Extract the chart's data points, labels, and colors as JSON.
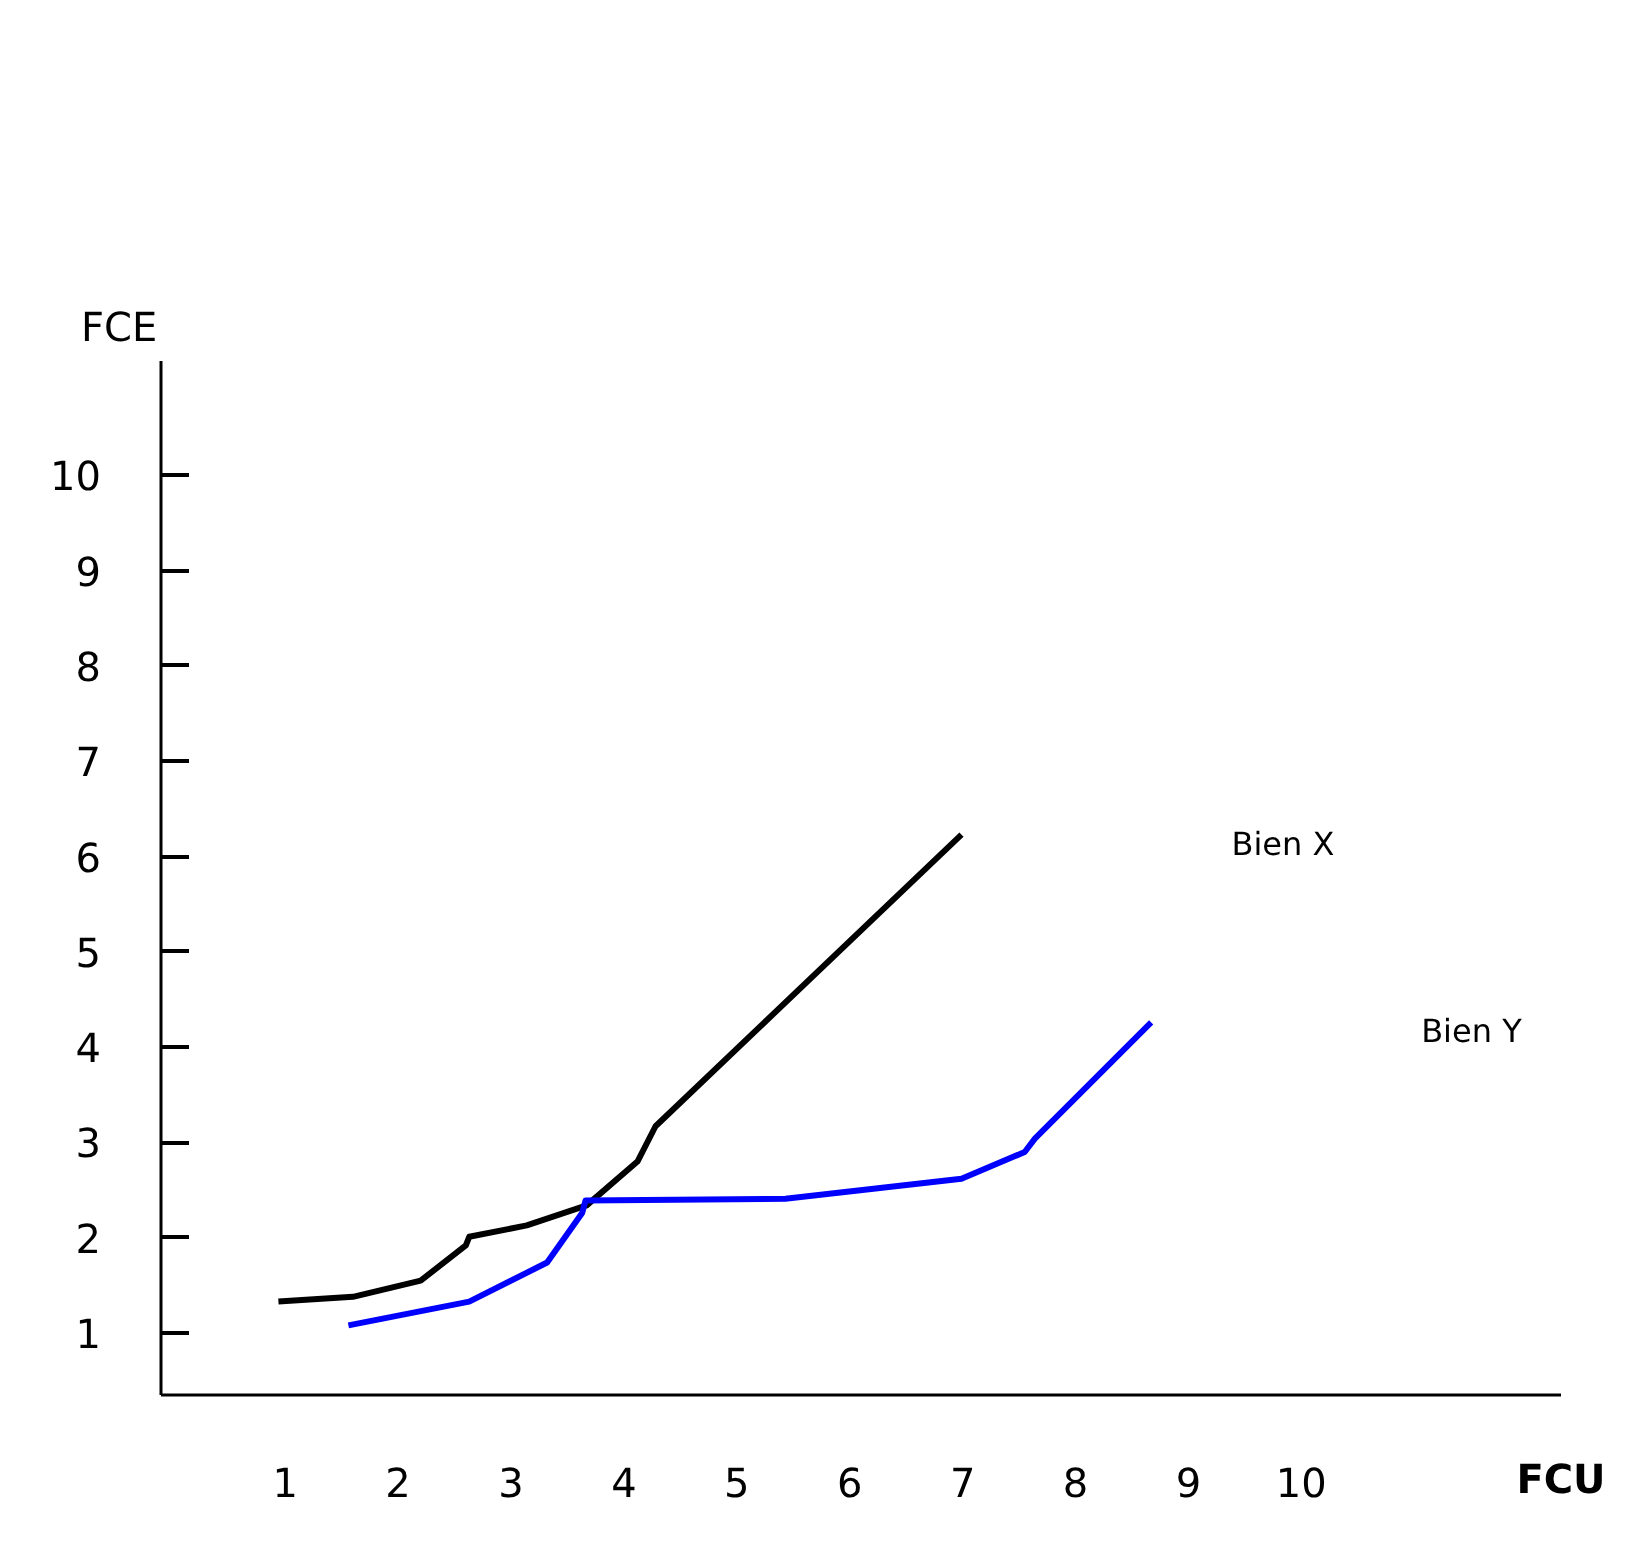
{
  "chart_data": {
    "type": "line",
    "xlabel": "FCU",
    "ylabel": "FCE",
    "xlim": [
      -0.1,
      12.3
    ],
    "ylim": [
      0.35,
      11.2
    ],
    "xticks": [
      1,
      2,
      3,
      4,
      5,
      6,
      7,
      8,
      9,
      10
    ],
    "yticks": [
      1,
      2,
      3,
      4,
      5,
      6,
      7,
      8,
      9,
      10
    ],
    "grid": false,
    "legend": false,
    "marker": "none",
    "line_style": "solid",
    "series": [
      {
        "name": "Bien X",
        "color": "#000000",
        "x": [
          0.94,
          1.6,
          2.2,
          2.6,
          2.63,
          3.14,
          3.67,
          4.12,
          4.28,
          6.99
        ],
        "values": [
          1.33,
          1.38,
          1.55,
          1.92,
          2.01,
          2.13,
          2.34,
          2.8,
          3.17,
          6.23
        ]
      },
      {
        "name": "Bien Y",
        "color": "#0000ff",
        "x": [
          1.56,
          2.63,
          3.32,
          3.63,
          3.66,
          5.43,
          6.99,
          7.55,
          7.64,
          8.67
        ],
        "values": [
          1.08,
          1.33,
          1.74,
          2.26,
          2.39,
          2.41,
          2.62,
          2.9,
          3.04,
          4.26
        ]
      }
    ]
  }
}
